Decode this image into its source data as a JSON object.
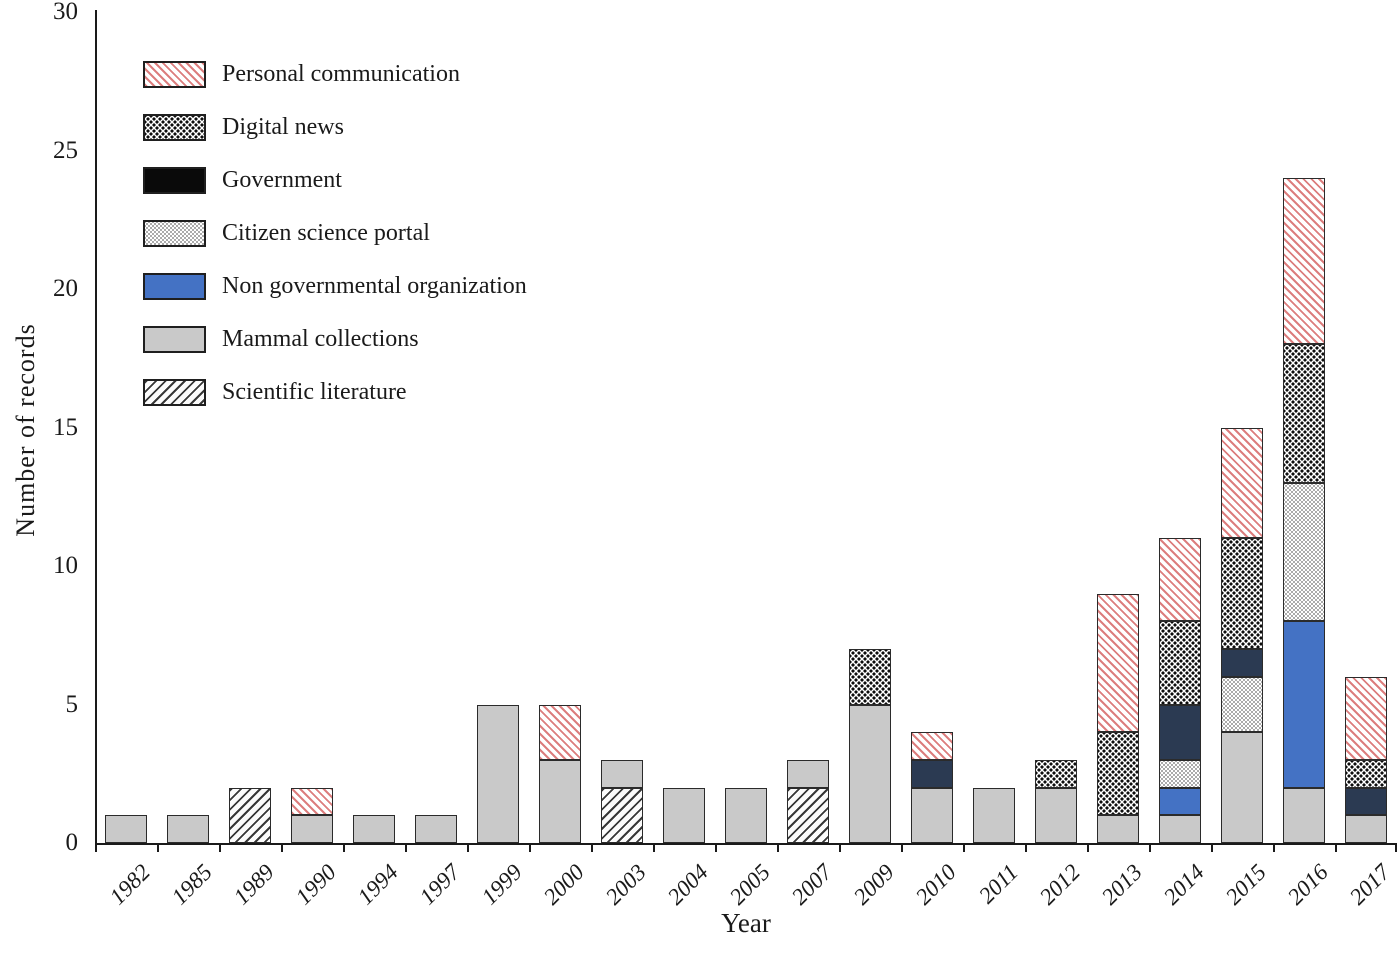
{
  "chart_data": {
    "type": "bar",
    "subtype": "stacked-vertical",
    "title": "",
    "xlabel": "Year",
    "ylabel": "Number of  records",
    "ylim": [
      0,
      30
    ],
    "yticks": [
      0,
      5,
      10,
      15,
      20,
      25,
      30
    ],
    "grid": false,
    "legend_position": "upper-left-inside",
    "categories": [
      "1982",
      "1985",
      "1989",
      "1990",
      "1994",
      "1997",
      "1999",
      "2000",
      "2003",
      "2004",
      "2005",
      "2007",
      "2009",
      "2010",
      "2011",
      "2012",
      "2013",
      "2014",
      "2015",
      "2016",
      "2017"
    ],
    "stack_order_note": "series listed bottom-to-top of stack",
    "series": [
      {
        "key": "scilit",
        "name": "Scientific literature",
        "fill": "black diagonal hatch / on white",
        "color": "#373737",
        "values": [
          0,
          0,
          2,
          0,
          0,
          0,
          0,
          0,
          2,
          0,
          0,
          2,
          0,
          0,
          0,
          0,
          0,
          0,
          0,
          0,
          0
        ]
      },
      {
        "key": "mammal",
        "name": "Mammal collections",
        "fill": "solid light gray",
        "color": "#c9c9c9",
        "values": [
          1,
          1,
          0,
          1,
          1,
          1,
          5,
          3,
          1,
          2,
          2,
          1,
          5,
          2,
          2,
          2,
          1,
          1,
          4,
          2,
          1
        ]
      },
      {
        "key": "ngo",
        "name": "Non governmental organization",
        "fill": "solid blue",
        "color": "#4472c4",
        "values": [
          0,
          0,
          0,
          0,
          0,
          0,
          0,
          0,
          0,
          0,
          0,
          0,
          0,
          0,
          0,
          0,
          0,
          1,
          0,
          6,
          0
        ]
      },
      {
        "key": "citizen",
        "name": "Citizen science portal",
        "fill": "fine gray dot grid on white",
        "color": "#8f8f8f",
        "values": [
          0,
          0,
          0,
          0,
          0,
          0,
          0,
          0,
          0,
          0,
          0,
          0,
          0,
          0,
          0,
          0,
          0,
          1,
          2,
          5,
          0
        ]
      },
      {
        "key": "government",
        "name": "Government",
        "fill": "solid dark navy (legend swatch black)",
        "color": "#2b3a52",
        "values": [
          0,
          0,
          0,
          0,
          0,
          0,
          0,
          0,
          0,
          0,
          0,
          0,
          0,
          1,
          0,
          0,
          0,
          2,
          1,
          0,
          1
        ]
      },
      {
        "key": "digital",
        "name": "Digital news",
        "fill": "dense black speckle on white",
        "color": "#0d0d0d",
        "values": [
          0,
          0,
          0,
          0,
          0,
          0,
          0,
          0,
          0,
          0,
          0,
          0,
          2,
          0,
          0,
          1,
          3,
          3,
          4,
          5,
          1
        ]
      },
      {
        "key": "personal",
        "name": "Personal communication",
        "fill": "red diagonal hatch \\ on white",
        "color": "#dc7e7e",
        "values": [
          0,
          0,
          0,
          1,
          0,
          0,
          0,
          2,
          0,
          0,
          0,
          0,
          0,
          1,
          0,
          0,
          5,
          3,
          4,
          6,
          3
        ]
      }
    ],
    "totals": [
      1,
      1,
      2,
      2,
      1,
      1,
      5,
      5,
      3,
      2,
      2,
      3,
      7,
      4,
      2,
      3,
      9,
      11,
      15,
      24,
      6
    ],
    "legend": [
      {
        "key": "personal",
        "label": "Personal communication"
      },
      {
        "key": "digital",
        "label": "Digital news"
      },
      {
        "key": "government",
        "label": "Government"
      },
      {
        "key": "citizen",
        "label": "Citizen science portal"
      },
      {
        "key": "ngo",
        "label": "Non governmental organization"
      },
      {
        "key": "mammal",
        "label": "Mammal collections"
      },
      {
        "key": "scilit",
        "label": "Scientific literature"
      }
    ]
  }
}
